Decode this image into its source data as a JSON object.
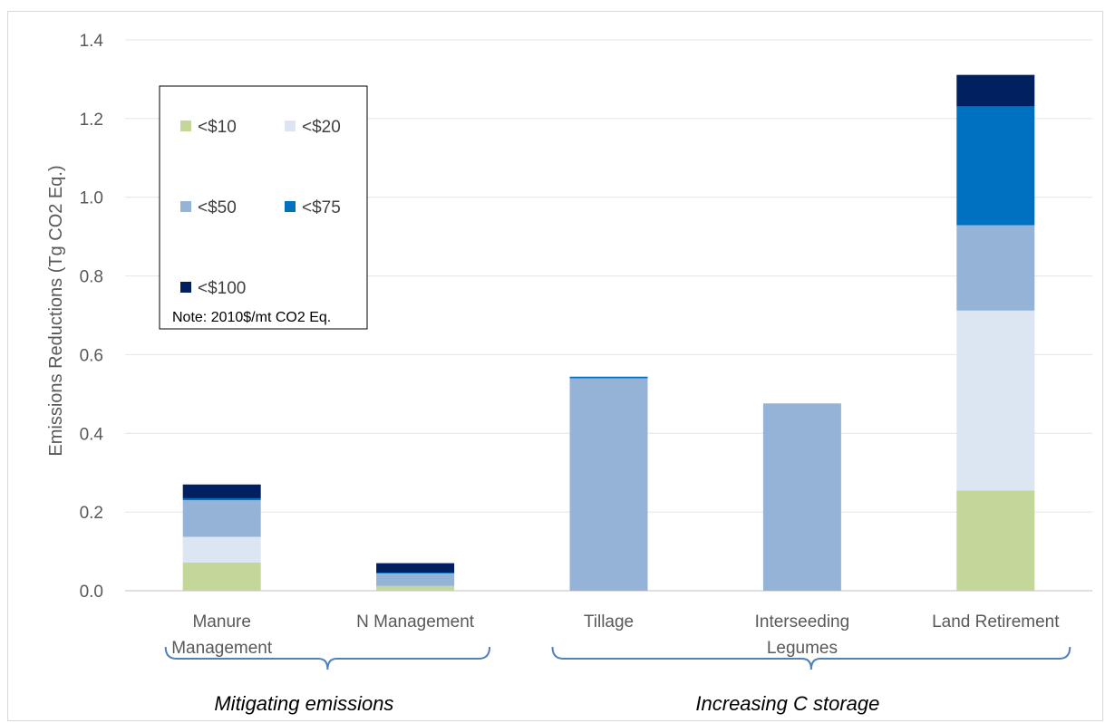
{
  "chart_data": {
    "type": "bar",
    "stacked": true,
    "categories": [
      "Manure Management",
      "N Management",
      "Tillage",
      "Interseeding Legumes",
      "Land Retirement"
    ],
    "category_lines": [
      [
        "Manure",
        "Management"
      ],
      [
        "N Management"
      ],
      [
        "Tillage"
      ],
      [
        "Interseeding",
        "Legumes"
      ],
      [
        "Land Retirement"
      ]
    ],
    "series": [
      {
        "name": "<$10",
        "color": "#c4d79b",
        "values": [
          0.072,
          0.012,
          0.0,
          0.0,
          0.255
        ]
      },
      {
        "name": "<$20",
        "color": "#dce6f2",
        "values": [
          0.065,
          0.0,
          0.0,
          0.0,
          0.457
        ]
      },
      {
        "name": "<$50",
        "color": "#95b3d7",
        "values": [
          0.093,
          0.032,
          0.54,
          0.476,
          0.217
        ]
      },
      {
        "name": "<$75",
        "color": "#0070c0",
        "values": [
          0.005,
          0.002,
          0.004,
          0.0,
          0.302
        ]
      },
      {
        "name": "<$100",
        "color": "#002060",
        "values": [
          0.035,
          0.024,
          0.0,
          0.0,
          0.08
        ]
      }
    ],
    "ylabel": "Emissions Reductions (Tg CO2 Eq.)",
    "ylim": [
      0,
      1.4
    ],
    "yticks": [
      "0.0",
      "0.2",
      "0.4",
      "0.6",
      "0.8",
      "1.0",
      "1.2",
      "1.4"
    ],
    "grid": true,
    "legend_position": "top-left",
    "legend_note": "Note: 2010$/mt CO2 Eq.",
    "groups": [
      {
        "label": "Mitigating emissions",
        "categories": [
          0,
          1
        ]
      },
      {
        "label": "Increasing C storage",
        "categories": [
          2,
          3,
          4
        ]
      }
    ],
    "bracket_color": "#4f81bd"
  }
}
